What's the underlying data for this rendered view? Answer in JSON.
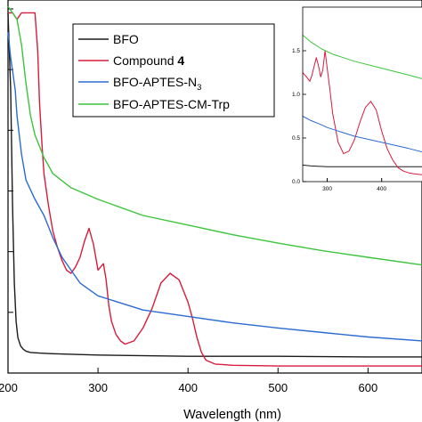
{
  "chart_data": [
    {
      "type": "line",
      "xlabel": "Wavelength (nm)",
      "ylabel": "",
      "xlim": [
        200,
        660
      ],
      "ylim": [
        0,
        5.8
      ],
      "x_ticks": [
        "200",
        "300",
        "400",
        "500",
        "600"
      ],
      "legend": {
        "placement": "top-center",
        "entries": [
          {
            "series": 0,
            "text": "BFO"
          },
          {
            "series": 1,
            "text": "Compound ",
            "bold": "4"
          },
          {
            "series": 2,
            "text": "BFO-APTES-N",
            "sub": "3"
          },
          {
            "series": 3,
            "text": "BFO-APTES-CM-Trp"
          }
        ]
      },
      "series": [
        {
          "color": "#1a1a1a",
          "x": [
            200,
            203,
            205,
            207,
            209,
            211,
            214,
            217,
            220,
            225,
            235,
            250,
            300,
            400,
            500,
            600,
            660
          ],
          "y": [
            5.6,
            4.4,
            2.6,
            1.4,
            0.8,
            0.55,
            0.42,
            0.37,
            0.34,
            0.32,
            0.31,
            0.3,
            0.28,
            0.26,
            0.26,
            0.25,
            0.25
          ]
        },
        {
          "color": "#d81b3c",
          "x": [
            200,
            205,
            210,
            215,
            220,
            225,
            230,
            233,
            235,
            238,
            240,
            245,
            250,
            255,
            260,
            265,
            270,
            275,
            280,
            285,
            290,
            295,
            300,
            303,
            306,
            309,
            312,
            315,
            320,
            325,
            330,
            340,
            350,
            360,
            370,
            380,
            390,
            400,
            405,
            410,
            415,
            420,
            430,
            450,
            500,
            550,
            600,
            660
          ],
          "y": [
            5.6,
            5.6,
            5.5,
            5.6,
            5.6,
            5.6,
            5.6,
            5.0,
            4.2,
            3.5,
            3.1,
            2.6,
            2.2,
            1.95,
            1.75,
            1.6,
            1.55,
            1.65,
            1.8,
            2.05,
            2.25,
            2.0,
            1.6,
            1.65,
            1.7,
            1.45,
            1.05,
            0.8,
            0.6,
            0.5,
            0.45,
            0.5,
            0.7,
            1.0,
            1.4,
            1.55,
            1.45,
            1.1,
            0.85,
            0.55,
            0.32,
            0.2,
            0.14,
            0.12,
            0.11,
            0.11,
            0.11,
            0.11
          ]
        },
        {
          "color": "#2b6bd1",
          "x": [
            200,
            203,
            205,
            208,
            210,
            215,
            220,
            230,
            240,
            250,
            260,
            280,
            300,
            350,
            400,
            450,
            500,
            550,
            600,
            660
          ],
          "y": [
            5.3,
            4.9,
            4.7,
            4.4,
            4.0,
            3.4,
            3.0,
            2.7,
            2.45,
            2.1,
            1.8,
            1.4,
            1.2,
            0.98,
            0.88,
            0.78,
            0.7,
            0.63,
            0.56,
            0.5
          ]
        },
        {
          "color": "#3cc43c",
          "x": [
            200,
            205,
            210,
            215,
            220,
            225,
            230,
            240,
            250,
            270,
            300,
            350,
            400,
            450,
            500,
            550,
            600,
            660
          ],
          "y": [
            5.7,
            5.6,
            5.5,
            5.1,
            4.5,
            4.0,
            3.7,
            3.35,
            3.1,
            2.88,
            2.7,
            2.45,
            2.3,
            2.15,
            2.02,
            1.9,
            1.8,
            1.68
          ]
        }
      ]
    },
    {
      "type": "line",
      "placement": "inset-top-right",
      "xlim": [
        255,
        474
      ],
      "ylim": [
        0,
        2.0
      ],
      "x_ticks": [
        "300",
        "400"
      ],
      "y_ticks": [
        "0.0",
        "0.5",
        "1.0",
        "1.5"
      ],
      "series": [
        {
          "color": "#1a1a1a",
          "x": [
            255,
            270,
            300,
            350,
            400,
            450,
            474
          ],
          "y": [
            0.19,
            0.18,
            0.17,
            0.17,
            0.17,
            0.17,
            0.17
          ]
        },
        {
          "color": "#d81b3c",
          "x": [
            255,
            262,
            268,
            272,
            276,
            280,
            284,
            288,
            292,
            296,
            300,
            305,
            310,
            320,
            330,
            340,
            350,
            360,
            370,
            380,
            390,
            400,
            410,
            420,
            430,
            440,
            450,
            460,
            474
          ],
          "y": [
            1.25,
            1.2,
            1.15,
            1.22,
            1.32,
            1.42,
            1.33,
            1.2,
            1.28,
            1.5,
            1.3,
            1.05,
            0.78,
            0.45,
            0.32,
            0.35,
            0.48,
            0.68,
            0.85,
            0.92,
            0.82,
            0.58,
            0.38,
            0.25,
            0.16,
            0.12,
            0.1,
            0.09,
            0.08
          ]
        },
        {
          "color": "#2b6bd1",
          "x": [
            255,
            270,
            290,
            300,
            320,
            350,
            400,
            450,
            474
          ],
          "y": [
            0.75,
            0.7,
            0.65,
            0.62,
            0.58,
            0.52,
            0.45,
            0.38,
            0.34
          ]
        },
        {
          "color": "#3cc43c",
          "x": [
            255,
            270,
            290,
            310,
            350,
            400,
            450,
            474
          ],
          "y": [
            1.68,
            1.6,
            1.52,
            1.46,
            1.38,
            1.3,
            1.22,
            1.18
          ]
        }
      ]
    }
  ]
}
